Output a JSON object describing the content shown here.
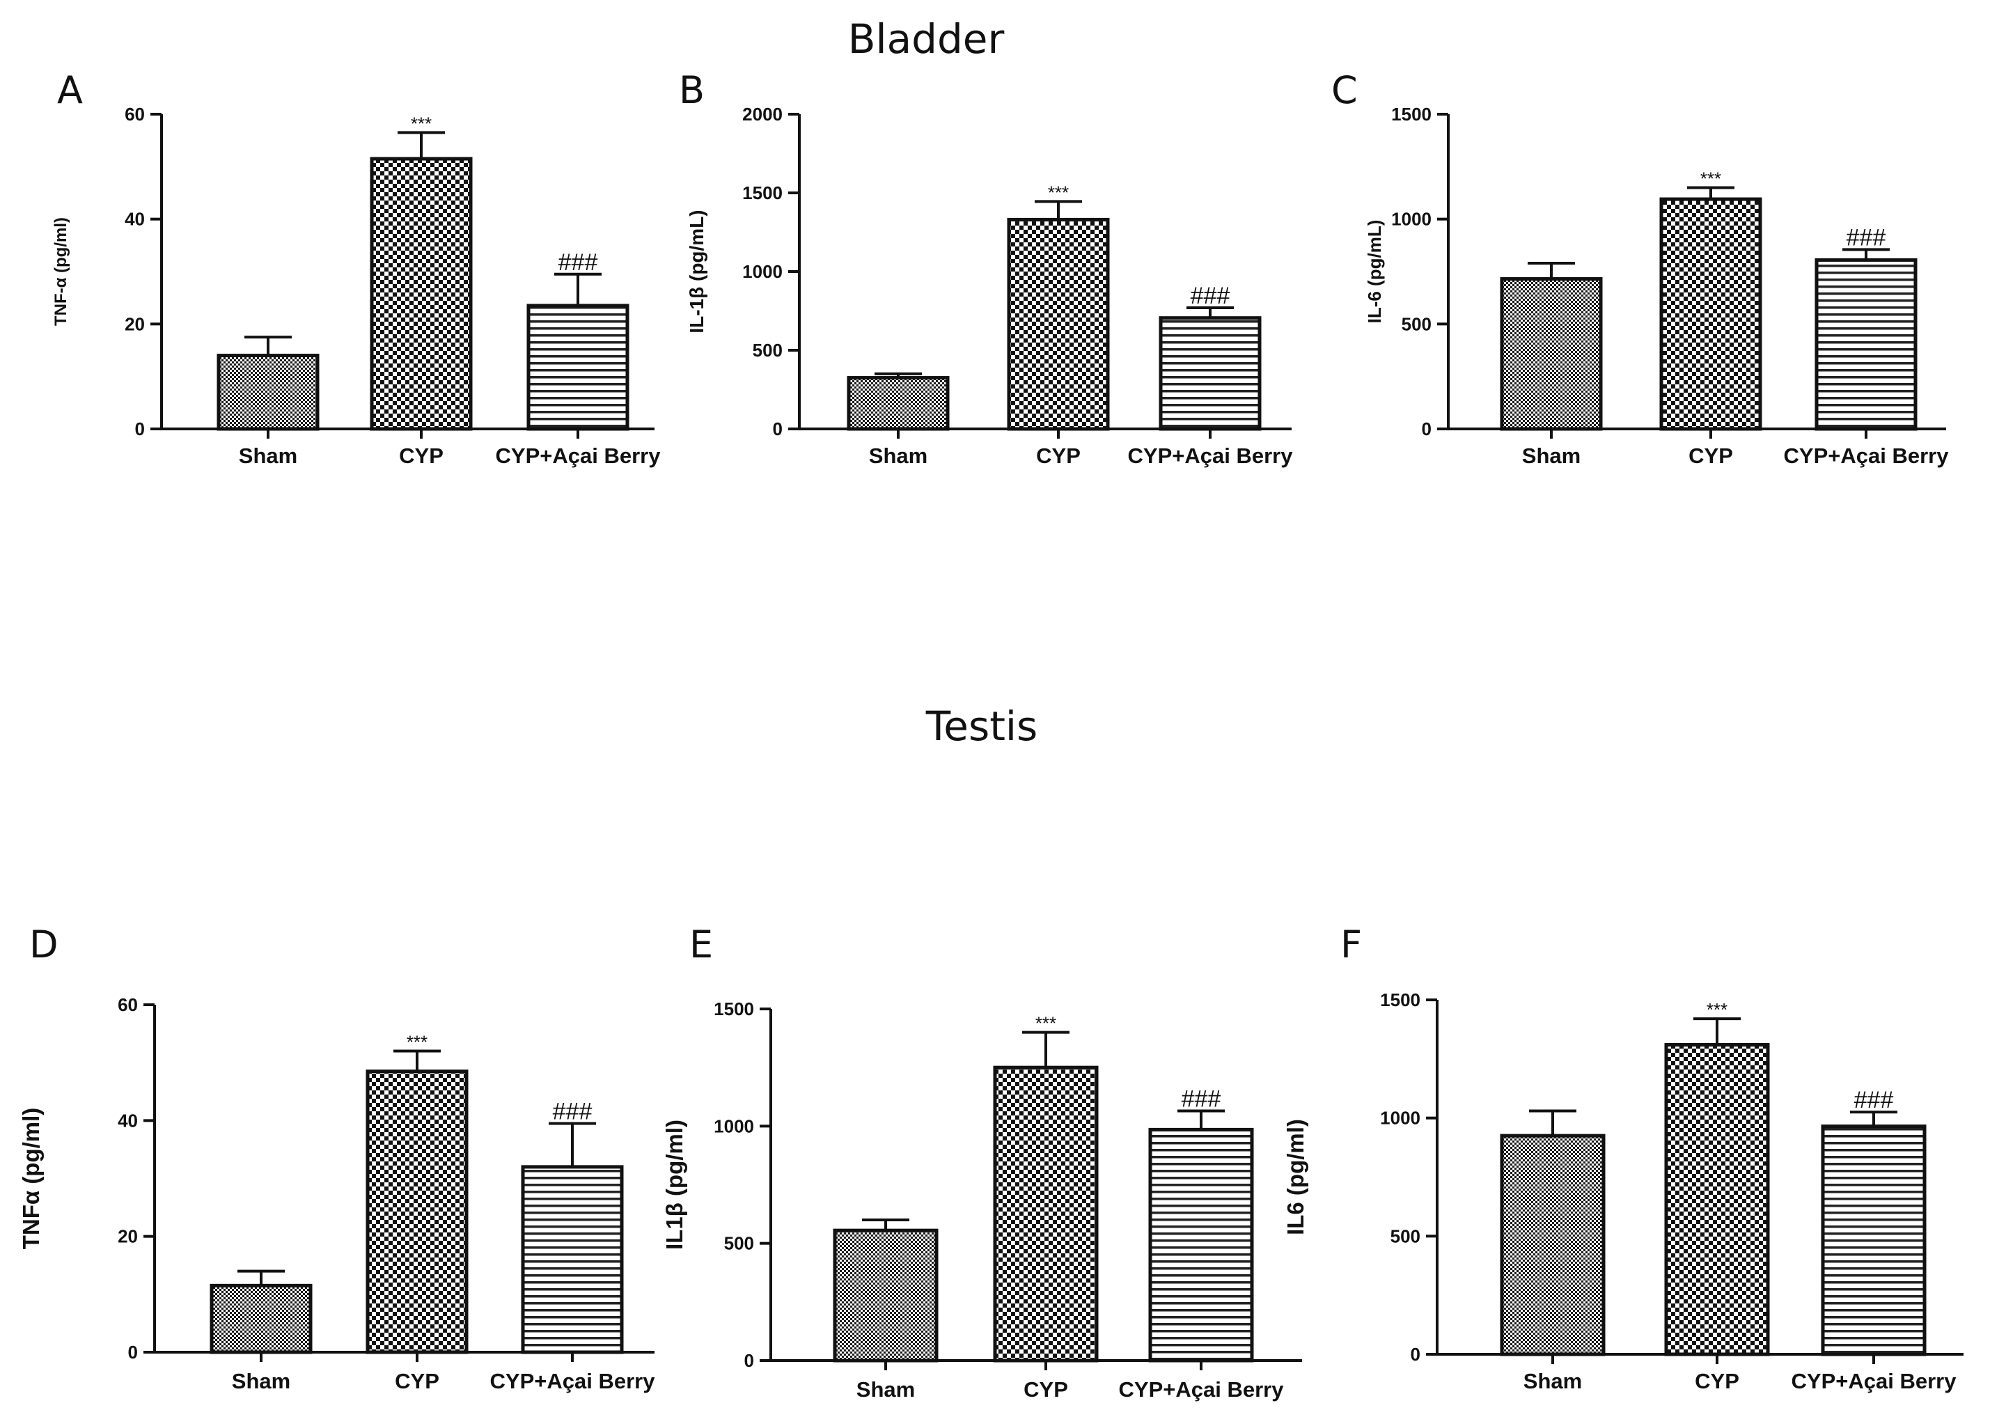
{
  "sections": {
    "bladder": "Bladder",
    "testis": "Testis"
  },
  "chart_data": [
    {
      "type": "bar",
      "panel": "A",
      "section": "Bladder",
      "ylabel": "TNF-α (pg/ml)",
      "ylim": [
        0,
        60
      ],
      "yticks": [
        0,
        20,
        40,
        60
      ],
      "categories": [
        "Sham",
        "CYP",
        "CYP+Açai Berry"
      ],
      "values": [
        14,
        51.5,
        23.5
      ],
      "errors": [
        3.5,
        5,
        6
      ],
      "patterns": [
        "fine",
        "check",
        "stripe"
      ],
      "annotations": [
        "",
        "***",
        "###"
      ]
    },
    {
      "type": "bar",
      "panel": "B",
      "section": "Bladder",
      "ylabel": "IL-1β (pg/mL)",
      "ylim": [
        0,
        2000
      ],
      "yticks": [
        0,
        500,
        1000,
        1500,
        2000
      ],
      "categories": [
        "Sham",
        "CYP",
        "CYP+Açai Berry"
      ],
      "values": [
        325,
        1330,
        705
      ],
      "errors": [
        25,
        115,
        65
      ],
      "patterns": [
        "fine",
        "check",
        "stripe"
      ],
      "annotations": [
        "",
        "***",
        "###"
      ]
    },
    {
      "type": "bar",
      "panel": "C",
      "section": "Bladder",
      "ylabel": "IL-6 (pg/mL)",
      "ylim": [
        0,
        1500
      ],
      "yticks": [
        0,
        500,
        1000,
        1500
      ],
      "categories": [
        "Sham",
        "CYP",
        "CYP+Açai Berry"
      ],
      "values": [
        715,
        1095,
        805
      ],
      "errors": [
        75,
        55,
        50
      ],
      "patterns": [
        "fine",
        "check",
        "stripe"
      ],
      "annotations": [
        "",
        "***",
        "###"
      ]
    },
    {
      "type": "bar",
      "panel": "D",
      "section": "Testis",
      "ylabel": "TNFα (pg/ml)",
      "ylim": [
        0,
        60
      ],
      "yticks": [
        0,
        20,
        40,
        60
      ],
      "categories": [
        "Sham",
        "CYP",
        "CYP+Açai Berry"
      ],
      "values": [
        11.5,
        48.5,
        32
      ],
      "errors": [
        2.5,
        3.5,
        7.5
      ],
      "patterns": [
        "fine",
        "check",
        "stripe"
      ],
      "annotations": [
        "",
        "***",
        "###"
      ]
    },
    {
      "type": "bar",
      "panel": "E",
      "section": "Testis",
      "ylabel": "IL1β (pg/ml)",
      "ylim": [
        0,
        1500
      ],
      "yticks": [
        0,
        500,
        1000,
        1500
      ],
      "categories": [
        "Sham",
        "CYP",
        "CYP+Açai Berry"
      ],
      "values": [
        555,
        1250,
        985
      ],
      "errors": [
        45,
        150,
        80
      ],
      "patterns": [
        "fine",
        "check",
        "stripe"
      ],
      "annotations": [
        "",
        "***",
        "###"
      ]
    },
    {
      "type": "bar",
      "panel": "F",
      "section": "Testis",
      "ylabel": "IL6 (pg/ml)",
      "ylim": [
        0,
        1500
      ],
      "yticks": [
        0,
        500,
        1000,
        1500
      ],
      "categories": [
        "Sham",
        "CYP",
        "CYP+Açai Berry"
      ],
      "values": [
        925,
        1310,
        965
      ],
      "errors": [
        105,
        110,
        60
      ],
      "patterns": [
        "fine",
        "check",
        "stripe"
      ],
      "annotations": [
        "",
        "***",
        "###"
      ]
    }
  ]
}
